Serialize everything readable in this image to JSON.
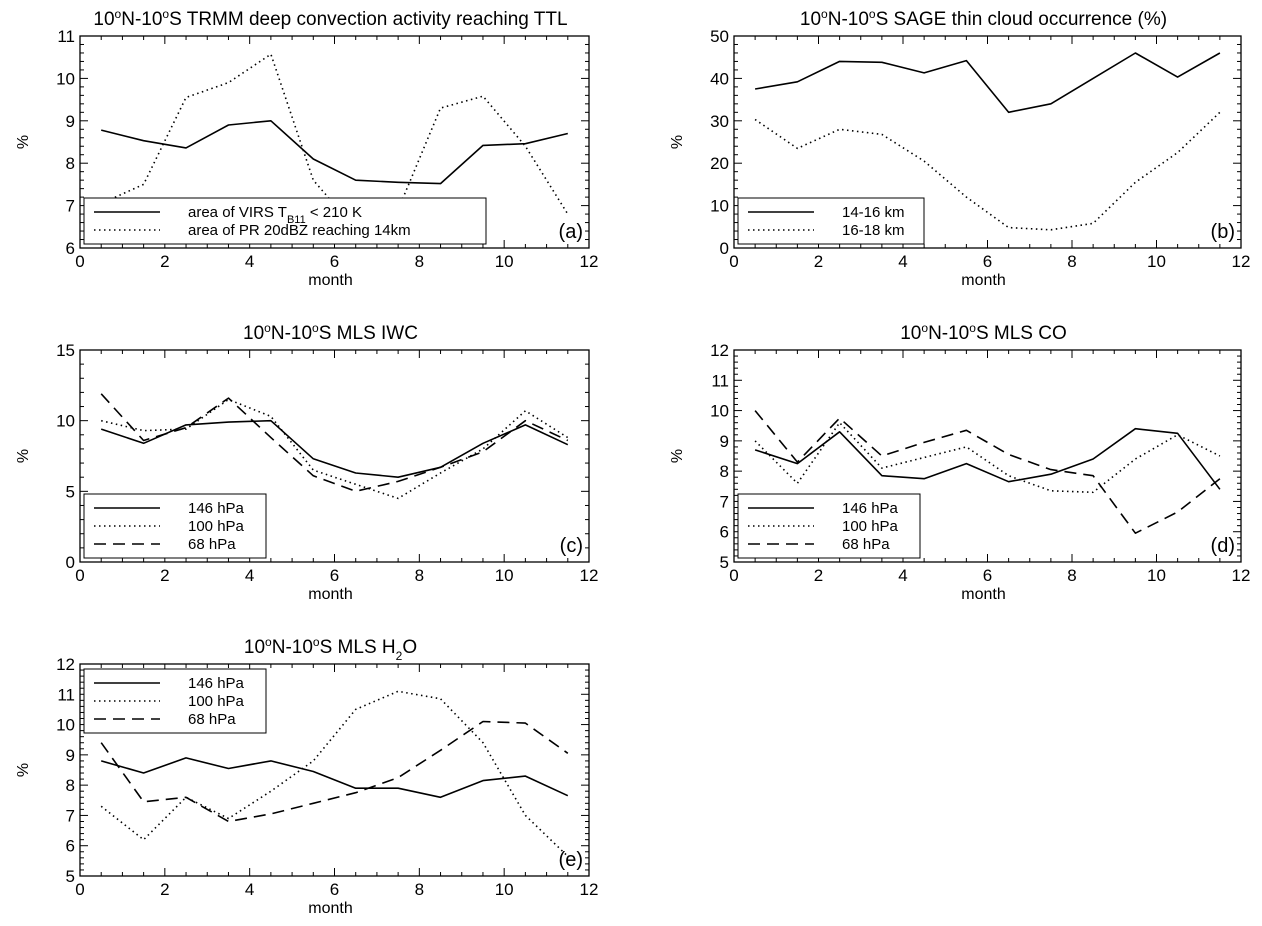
{
  "figure": {
    "background": "#ffffff",
    "line_color": "#000000"
  },
  "chart_data": [
    {
      "id": "a",
      "type": "line",
      "title": "10°N-10°S TRMM deep convection activity reaching TTL",
      "title_parts": [
        "10",
        "o",
        "N-10",
        "o",
        "S TRMM deep convection activity reaching TTL"
      ],
      "xlabel": "month",
      "ylabel": "%",
      "xlim": [
        0,
        12
      ],
      "ylim": [
        6,
        11
      ],
      "xticks": [
        0,
        2,
        4,
        6,
        8,
        10,
        12
      ],
      "yticks": [
        6,
        7,
        8,
        9,
        10,
        11
      ],
      "x": [
        0.5,
        1.5,
        2.5,
        3.5,
        4.5,
        5.5,
        6.5,
        7.5,
        8.5,
        9.5,
        10.5,
        11.5
      ],
      "series": [
        {
          "name": "area of VIRS T_B11 < 210 K",
          "legend_main": "area of VIRS T",
          "legend_sub": "B11",
          "legend_rest": " < 210 K",
          "style": "solid",
          "values": [
            8.78,
            8.53,
            8.36,
            8.9,
            9.0,
            8.1,
            7.6,
            7.55,
            7.52,
            8.42,
            8.46,
            8.7
          ]
        },
        {
          "name": "area of PR 20dBZ reaching 14km",
          "style": "dotted",
          "values": [
            7.05,
            7.5,
            9.55,
            9.9,
            10.57,
            7.6,
            6.45,
            6.9,
            9.3,
            9.58,
            8.4,
            6.8
          ]
        }
      ],
      "legend_placement": "bottom-left",
      "panel_label": "(a)",
      "grid": false
    },
    {
      "id": "b",
      "type": "line",
      "title": "10°N-10°S SAGE thin cloud occurrence (%)",
      "title_parts": [
        "10",
        "o",
        "N-10",
        "o",
        "S SAGE thin cloud occurrence (%)"
      ],
      "xlabel": "month",
      "ylabel": "%",
      "xlim": [
        0,
        12
      ],
      "ylim": [
        0,
        50
      ],
      "xticks": [
        0,
        2,
        4,
        6,
        8,
        10,
        12
      ],
      "yticks": [
        0,
        10,
        20,
        30,
        40,
        50
      ],
      "x": [
        0.5,
        1.5,
        2.5,
        3.5,
        4.5,
        5.5,
        6.5,
        7.5,
        8.5,
        9.5,
        10.5,
        11.5
      ],
      "series": [
        {
          "name": "14-16 km",
          "style": "solid",
          "values": [
            37.5,
            39.2,
            44,
            43.8,
            41.3,
            44.2,
            32,
            34,
            40,
            46,
            40.3,
            46
          ]
        },
        {
          "name": "16-18 km",
          "style": "dotted",
          "values": [
            30.3,
            23.5,
            28,
            26.8,
            20.5,
            12,
            4.8,
            4.3,
            5.8,
            15.5,
            22.5,
            32
          ]
        }
      ],
      "legend_placement": "bottom-left",
      "panel_label": "(b)",
      "grid": false
    },
    {
      "id": "c",
      "type": "line",
      "title": "10°N-10°S MLS IWC",
      "title_parts": [
        "10",
        "o",
        "N-10",
        "o",
        "S MLS IWC"
      ],
      "xlabel": "month",
      "ylabel": "%",
      "xlim": [
        0,
        12
      ],
      "ylim": [
        0,
        15
      ],
      "xticks": [
        0,
        2,
        4,
        6,
        8,
        10,
        12
      ],
      "yticks": [
        0,
        5,
        10,
        15
      ],
      "x": [
        0.5,
        1.5,
        2.5,
        3.5,
        4.5,
        5.5,
        6.5,
        7.5,
        8.5,
        9.5,
        10.5,
        11.5
      ],
      "series": [
        {
          "name": "146 hPa",
          "style": "solid",
          "values": [
            9.4,
            8.4,
            9.7,
            9.9,
            10.0,
            7.3,
            6.3,
            6.0,
            6.7,
            8.4,
            9.7,
            8.3
          ]
        },
        {
          "name": "100 hPa",
          "style": "dotted",
          "values": [
            10.0,
            9.3,
            9.4,
            11.5,
            10.3,
            6.5,
            5.5,
            4.5,
            6.3,
            8.0,
            10.7,
            8.8
          ]
        },
        {
          "name": "68 hPa",
          "style": "dashed",
          "values": [
            11.9,
            8.6,
            9.5,
            11.6,
            8.8,
            6.1,
            5.0,
            5.7,
            6.7,
            7.8,
            10.0,
            8.6
          ]
        }
      ],
      "legend_placement": "bottom-left",
      "panel_label": "(c)",
      "grid": false
    },
    {
      "id": "d",
      "type": "line",
      "title": "10°N-10°S MLS CO",
      "title_parts": [
        "10",
        "o",
        "N-10",
        "o",
        "S MLS CO"
      ],
      "xlabel": "month",
      "ylabel": "%",
      "xlim": [
        0,
        12
      ],
      "ylim": [
        5,
        12
      ],
      "xticks": [
        0,
        2,
        4,
        6,
        8,
        10,
        12
      ],
      "yticks": [
        5,
        6,
        7,
        8,
        9,
        10,
        11,
        12
      ],
      "x": [
        0.5,
        1.5,
        2.5,
        3.5,
        4.5,
        5.5,
        6.5,
        7.5,
        8.5,
        9.5,
        10.5,
        11.5
      ],
      "series": [
        {
          "name": "146 hPa",
          "style": "solid",
          "values": [
            8.7,
            8.25,
            9.3,
            7.85,
            7.75,
            8.25,
            7.65,
            7.9,
            8.4,
            9.4,
            9.25,
            7.4
          ]
        },
        {
          "name": "100 hPa",
          "style": "dotted",
          "values": [
            9.0,
            7.6,
            9.6,
            8.1,
            8.45,
            8.8,
            7.85,
            7.35,
            7.3,
            8.4,
            9.2,
            8.5
          ]
        },
        {
          "name": "68 hPa",
          "style": "dashed",
          "values": [
            10.0,
            8.3,
            9.75,
            8.5,
            8.95,
            9.35,
            8.55,
            8.05,
            7.85,
            5.95,
            6.65,
            7.75
          ]
        }
      ],
      "legend_placement": "bottom-left",
      "panel_label": "(d)",
      "grid": false
    },
    {
      "id": "e",
      "type": "line",
      "title": "10°N-10°S MLS H2O",
      "title_parts": [
        "10",
        "o",
        "N-10",
        "o",
        "S MLS H",
        "2",
        "O"
      ],
      "xlabel": "month",
      "ylabel": "%",
      "xlim": [
        0,
        12
      ],
      "ylim": [
        5,
        12
      ],
      "xticks": [
        0,
        2,
        4,
        6,
        8,
        10,
        12
      ],
      "yticks": [
        5,
        6,
        7,
        8,
        9,
        10,
        11,
        12
      ],
      "x": [
        0.5,
        1.5,
        2.5,
        3.5,
        4.5,
        5.5,
        6.5,
        7.5,
        8.5,
        9.5,
        10.5,
        11.5
      ],
      "series": [
        {
          "name": "146 hPa",
          "style": "solid",
          "values": [
            8.8,
            8.4,
            8.9,
            8.55,
            8.8,
            8.45,
            7.9,
            7.9,
            7.6,
            8.15,
            8.3,
            7.65
          ]
        },
        {
          "name": "100 hPa",
          "style": "dotted",
          "values": [
            7.3,
            6.2,
            7.6,
            6.9,
            7.8,
            8.8,
            10.5,
            11.1,
            10.85,
            9.4,
            7.0,
            5.65
          ]
        },
        {
          "name": "68 hPa",
          "style": "dashed",
          "values": [
            9.4,
            7.45,
            7.6,
            6.8,
            7.05,
            7.4,
            7.75,
            8.25,
            9.15,
            10.1,
            10.05,
            9.05
          ]
        }
      ],
      "legend_placement": "top-left",
      "panel_label": "(e)",
      "grid": false
    }
  ]
}
